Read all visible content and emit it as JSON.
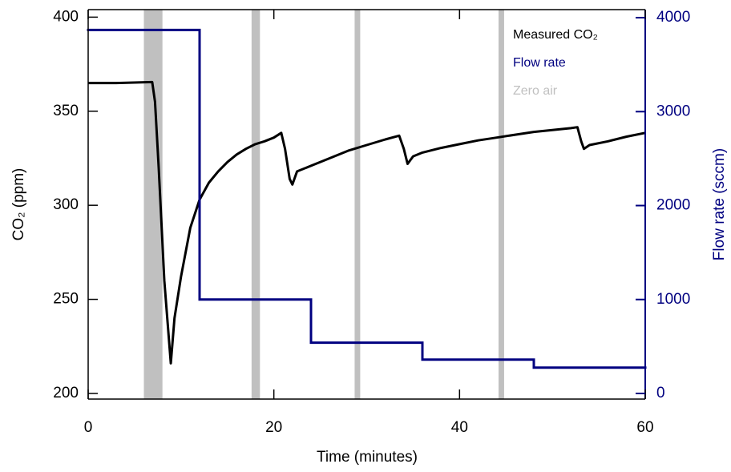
{
  "chart_data": {
    "type": "line",
    "xlabel": "Time (minutes)",
    "ylabel": "CO₂ (ppm)",
    "y2label": "Flow rate (sccm)",
    "xlim": [
      0,
      60
    ],
    "xticks": [
      0,
      20,
      40,
      60
    ],
    "ylim": [
      197,
      404
    ],
    "yticks": [
      200,
      250,
      300,
      350,
      400
    ],
    "y2lim": [
      -60,
      4086
    ],
    "y2ticks": [
      0,
      1000,
      2000,
      3000,
      4000
    ],
    "legend": "upper right",
    "series": [
      {
        "name": "Measured CO₂",
        "color": "#000000",
        "x": [
          0,
          3,
          6.9,
          7.2,
          7.6,
          8.2,
          8.9,
          9.3,
          10,
          11,
          12,
          13,
          14,
          15,
          16,
          17,
          18,
          19,
          20,
          20.8,
          21.2,
          21.7,
          22,
          22.5,
          24,
          26,
          28,
          30,
          32,
          33.5,
          34,
          34.4,
          35,
          36,
          38,
          40,
          42,
          44,
          46,
          48,
          50,
          52,
          52.7,
          53.1,
          53.4,
          54,
          56,
          58,
          60
        ],
        "values": [
          365,
          365,
          365.5,
          355,
          320,
          260,
          216,
          240,
          262,
          288,
          303,
          312,
          318,
          323,
          327,
          330,
          332.5,
          334,
          336,
          338.5,
          330,
          314,
          311,
          318,
          321,
          325,
          329,
          332,
          335,
          337,
          330,
          322,
          326,
          328,
          330.5,
          332.5,
          334.5,
          336,
          337.5,
          339,
          340,
          341,
          341.5,
          334,
          330,
          332,
          334,
          336.5,
          338.5
        ]
      },
      {
        "name": "Flow rate",
        "color": "#000080",
        "axis": "y2",
        "step": "post",
        "x": [
          0,
          12,
          24,
          36,
          48,
          60
        ],
        "values": [
          3870,
          1000,
          540,
          360,
          275,
          275
        ]
      },
      {
        "name": "Zero air",
        "color": "#c0c0c0",
        "type": "span",
        "spans": [
          [
            6,
            8
          ],
          [
            17.6,
            18.5
          ],
          [
            28.7,
            29.3
          ],
          [
            44.2,
            44.8
          ]
        ]
      }
    ]
  }
}
